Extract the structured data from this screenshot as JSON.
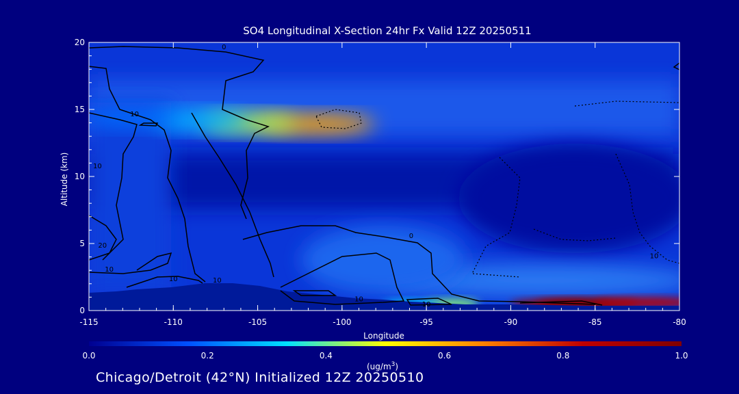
{
  "chart_data": {
    "type": "heatmap",
    "title": "SO4 Longitudinal X-Section 24hr  Fx Valid 12Z 20250511",
    "xlabel": "Longitude",
    "ylabel": "Altitude (km)",
    "xlim": [
      -115,
      -80
    ],
    "ylim": [
      0,
      20
    ],
    "x_ticks": [
      "-115",
      "-110",
      "-105",
      "-100",
      "-95",
      "-90",
      "-85",
      "-80"
    ],
    "y_ticks": [
      "0",
      "5",
      "10",
      "15",
      "20"
    ],
    "colorbar": {
      "range": [
        0.0,
        1.0
      ],
      "tick_labels": [
        "0.0",
        "0.2",
        "0.4",
        "0.6",
        "0.8",
        "1.0"
      ],
      "unit_main": "(ug/m",
      "unit_sup": "3",
      "unit_end": ")",
      "colors": [
        "#000090",
        "#0050ff",
        "#00e0ff",
        "#ffff00",
        "#ff8000",
        "#c00000",
        "#800000"
      ]
    },
    "background_value": 0.12,
    "features": [
      {
        "lon": -101.5,
        "alt": 13.9,
        "value": 0.62
      },
      {
        "lon": -105.5,
        "alt": 14.0,
        "value": 0.45
      },
      {
        "lon": -108.5,
        "alt": 14.2,
        "value": 0.28
      },
      {
        "lon": -112.5,
        "alt": 14.4,
        "value": 0.2
      },
      {
        "lon": -85.5,
        "alt": 0.5,
        "value": 1.0
      },
      {
        "lon": -87.0,
        "alt": 0.5,
        "value": 0.95
      },
      {
        "lon": -82.0,
        "alt": 0.6,
        "value": 0.85
      },
      {
        "lon": -93.5,
        "alt": 0.5,
        "value": 0.42
      },
      {
        "lon": -96.0,
        "alt": 0.4,
        "value": 0.32
      }
    ],
    "contour_labels": [
      {
        "text": "0",
        "lon": -107.0,
        "alt": 19.5
      },
      {
        "text": "10",
        "lon": -112.3,
        "alt": 14.5
      },
      {
        "text": "10",
        "lon": -114.5,
        "alt": 10.6
      },
      {
        "text": "20",
        "lon": -114.2,
        "alt": 4.7
      },
      {
        "text": "10",
        "lon": -113.8,
        "alt": 2.9
      },
      {
        "text": "10",
        "lon": -110.0,
        "alt": 2.2
      },
      {
        "text": "10",
        "lon": -107.4,
        "alt": 2.1
      },
      {
        "text": "0",
        "lon": -95.9,
        "alt": 5.4
      },
      {
        "text": "10",
        "lon": -99.0,
        "alt": 0.7
      },
      {
        "text": "10",
        "lon": -95.0,
        "alt": 0.3
      },
      {
        "text": "10",
        "lon": -81.5,
        "alt": 3.9
      }
    ]
  },
  "footer": "Chicago/Detroit (42°N) Initialized 12Z 20250510"
}
